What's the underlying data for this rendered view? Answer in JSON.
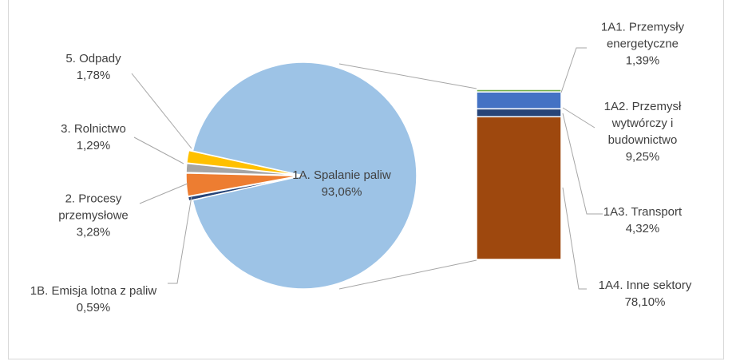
{
  "chart_data": {
    "type": "pie-of-bar",
    "categories": [
      "1A. Spalanie paliw",
      "5. Odpady",
      "3. Rolnictwo",
      "2. Procesy przemysłowe",
      "1B. Emisja lotna z paliw"
    ],
    "values": [
      93.06,
      1.78,
      1.29,
      3.28,
      0.59
    ],
    "value_labels": [
      "93,06%",
      "1,78%",
      "1,29%",
      "3,28%",
      "0,59%"
    ],
    "colors": [
      "#9dc3e6",
      "#ffc000",
      "#a5a5a5",
      "#ed7d31",
      "#264478"
    ],
    "bar": {
      "categories": [
        "1A1. Przemysły energetyczne",
        "1A2. Przemysł wytwórczy i budownictwo",
        "1A3. Transport",
        "1A4. Inne sektory"
      ],
      "values": [
        1.39,
        9.25,
        4.32,
        78.1
      ],
      "value_labels": [
        "1,39%",
        "9,25%",
        "4,32%",
        "78,10%"
      ],
      "colors": [
        "#70ad47",
        "#4472c4",
        "#264478",
        "#9e480e"
      ]
    }
  }
}
